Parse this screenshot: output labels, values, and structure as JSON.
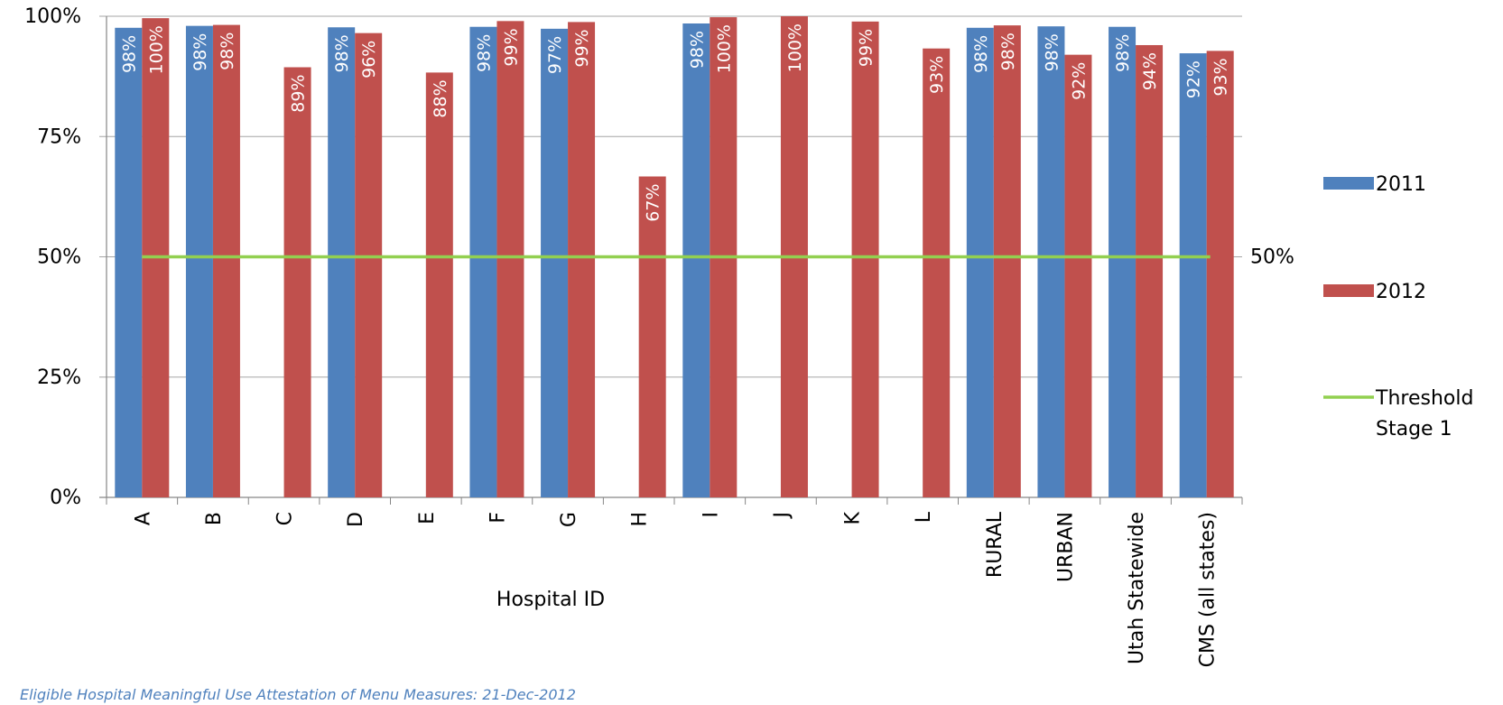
{
  "chart_data": {
    "type": "bar",
    "categories": [
      "A",
      "B",
      "C",
      "D",
      "E",
      "F",
      "G",
      "H",
      "I",
      "J",
      "K",
      "L",
      "RURAL",
      "URBAN",
      "Utah Statewide",
      "CMS (all states)"
    ],
    "series": [
      {
        "name": "2011",
        "color": "#4F81BD",
        "values": [
          97.6,
          98.0,
          null,
          97.7,
          null,
          97.8,
          97.4,
          null,
          98.5,
          null,
          null,
          null,
          97.6,
          97.9,
          97.8,
          92.3
        ],
        "labels": [
          "98%",
          "98%",
          "",
          "98%",
          "",
          "98%",
          "97%",
          "",
          "98%",
          "",
          "",
          "",
          "98%",
          "98%",
          "98%",
          "92%"
        ]
      },
      {
        "name": "2012",
        "color": "#C0504D",
        "values": [
          99.6,
          98.2,
          89.4,
          96.5,
          88.3,
          99.0,
          98.8,
          66.7,
          99.8,
          100,
          98.9,
          93.3,
          98.1,
          92.0,
          94.0,
          92.8
        ],
        "labels": [
          "100%",
          "98%",
          "89%",
          "96%",
          "88%",
          "99%",
          "99%",
          "67%",
          "100%",
          "100%",
          "99%",
          "93%",
          "98%",
          "92%",
          "94%",
          "93%"
        ]
      }
    ],
    "threshold": {
      "name": "Threshold Stage 1",
      "name_lines": [
        "Threshold",
        "Stage 1"
      ],
      "value": 50,
      "label": "50%",
      "color": "#92D050"
    },
    "y_ticks": [
      "0%",
      "25%",
      "50%",
      "75%",
      "100%"
    ],
    "ylim": [
      0,
      100
    ],
    "xlabel": "Hospital ID",
    "ylabel": "",
    "grid": true,
    "legend_position": "right"
  },
  "caption": "Eligible Hospital Meaningful Use Attestation of Menu Measures: 21-Dec-2012"
}
